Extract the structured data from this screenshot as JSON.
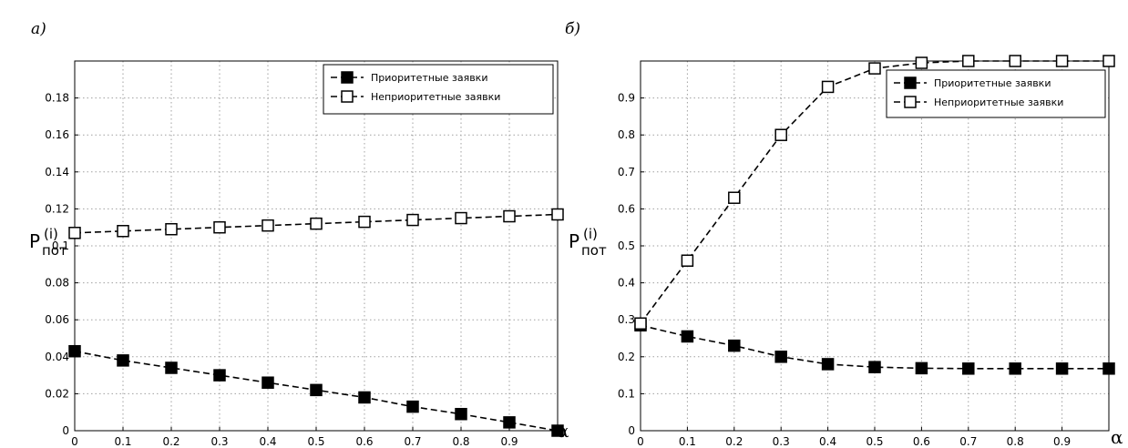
{
  "chart_data": [
    {
      "type": "line",
      "panel_label": "а)",
      "xlabel": "α",
      "ylabel_main": "P",
      "ylabel_sub": "пот",
      "ylabel_sup": "(i)",
      "xlim": [
        0,
        1
      ],
      "ylim": [
        0,
        0.2
      ],
      "x_ticks": [
        "0",
        "0.1",
        "0.2",
        "0.3",
        "0.4",
        "0.5",
        "0.6",
        "0.7",
        "0.8",
        "0.9"
      ],
      "y_ticks": [
        "0",
        "0.02",
        "0.04",
        "0.06",
        "0.08",
        "0.1",
        "0.12",
        "0.14",
        "0.16",
        "0.18"
      ],
      "grid": true,
      "legend_position": "top-right",
      "x": [
        0,
        0.1,
        0.2,
        0.3,
        0.4,
        0.5,
        0.6,
        0.7,
        0.8,
        0.9,
        1.0
      ],
      "series": [
        {
          "name": "Приоритетные заявки",
          "marker": "filled-square",
          "values": [
            0.043,
            0.038,
            0.034,
            0.03,
            0.026,
            0.022,
            0.018,
            0.013,
            0.009,
            0.0045,
            0.0
          ]
        },
        {
          "name": "Неприоритетные заявки",
          "marker": "open-square",
          "values": [
            0.107,
            0.108,
            0.109,
            0.11,
            0.111,
            0.112,
            0.113,
            0.114,
            0.115,
            0.116,
            0.117
          ]
        }
      ]
    },
    {
      "type": "line",
      "panel_label": "б)",
      "xlabel": "α",
      "ylabel_main": "P",
      "ylabel_sub": "пот",
      "ylabel_sup": "(i)",
      "xlim": [
        0,
        1
      ],
      "ylim": [
        0,
        1
      ],
      "x_ticks": [
        "0",
        "0.1",
        "0.2",
        "0.3",
        "0.4",
        "0.5",
        "0.6",
        "0.7",
        "0.8",
        "0.9"
      ],
      "y_ticks": [
        "0",
        "0.1",
        "0.2",
        "0.3",
        "0.4",
        "0.5",
        "0.6",
        "0.7",
        "0.8",
        "0.9"
      ],
      "grid": true,
      "legend_position": "top-right",
      "x": [
        0,
        0.1,
        0.2,
        0.3,
        0.4,
        0.5,
        0.6,
        0.7,
        0.8,
        0.9,
        1.0
      ],
      "series": [
        {
          "name": "Приоритетные заявки",
          "marker": "filled-square",
          "values": [
            0.285,
            0.255,
            0.23,
            0.2,
            0.18,
            0.172,
            0.169,
            0.168,
            0.168,
            0.168,
            0.168
          ]
        },
        {
          "name": "Неприоритетные заявки",
          "marker": "open-square",
          "values": [
            0.29,
            0.46,
            0.63,
            0.8,
            0.93,
            0.98,
            0.995,
            1.0,
            1.0,
            1.0,
            1.0
          ]
        }
      ]
    }
  ],
  "colors": {
    "line": "#000000",
    "grid": "#a0a0a0",
    "background": "#ffffff"
  }
}
